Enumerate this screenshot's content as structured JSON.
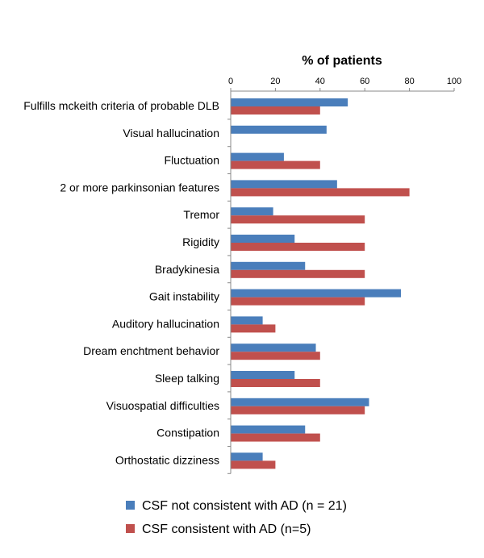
{
  "chart_data": {
    "type": "bar",
    "orientation": "horizontal",
    "xlabel": "% of patients",
    "xlim": [
      0,
      100
    ],
    "xticks": [
      0,
      20,
      40,
      60,
      80,
      100
    ],
    "categories": [
      "Fulfills mckeith criteria of probable DLB",
      "Visual hallucination",
      "Fluctuation",
      "2 or more parkinsonian features",
      "Tremor",
      "Rigidity",
      "Bradykinesia",
      "Gait instability",
      "Auditory hallucination",
      "Dream enchtment behavior",
      "Sleep talking",
      "Visuospatial difficulties",
      "Constipation",
      "Orthostatic dizziness"
    ],
    "series": [
      {
        "name": "CSF not consistent with AD (n = 21)",
        "color": "#4a7ebb",
        "values": [
          52.4,
          42.9,
          23.8,
          47.6,
          19.0,
          28.6,
          33.3,
          76.2,
          14.3,
          38.1,
          28.6,
          61.9,
          33.3,
          14.3
        ]
      },
      {
        "name": "CSF consistent with AD (n=5)",
        "color": "#c0504d",
        "values": [
          40,
          0,
          40,
          80,
          60,
          60,
          60,
          60,
          20,
          40,
          40,
          60,
          40,
          20
        ]
      }
    ],
    "axis_position": "top",
    "legend_position": "bottom",
    "grid": false
  }
}
